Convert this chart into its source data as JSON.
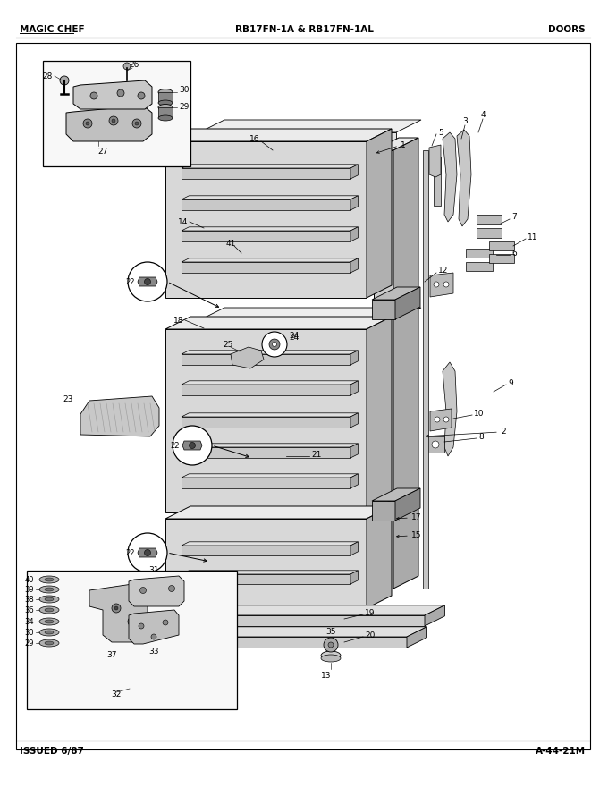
{
  "bg_color": "#ffffff",
  "header_left": "MAGIC CHEF",
  "header_center": "RB17FN-1A & RB17FN-1AL",
  "header_right": "DOORS",
  "footer_left": "ISSUED 6/87",
  "footer_right": "A-44-21M",
  "border_color": "#000000",
  "text_color": "#000000",
  "fig_width": 6.8,
  "fig_height": 8.9,
  "dpi": 100
}
